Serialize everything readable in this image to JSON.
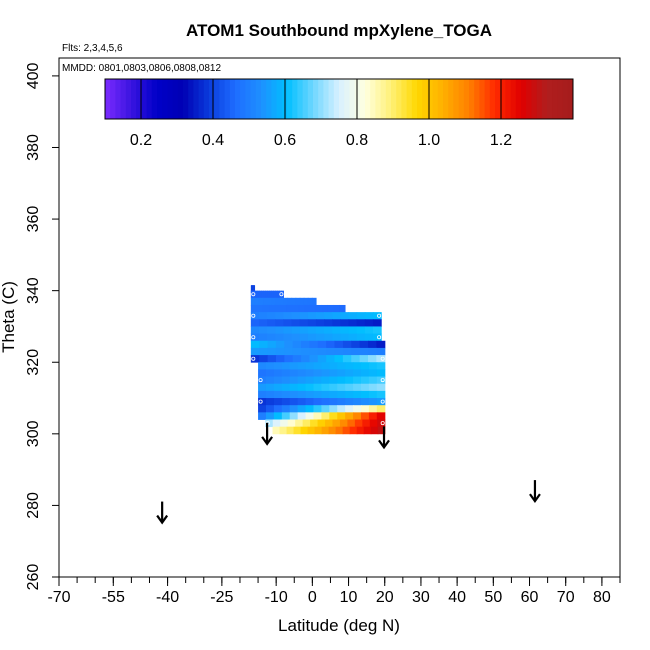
{
  "chart_data": {
    "type": "heatmap",
    "title": "ATOM1 Southbound mpXylene_TOGA",
    "subtitle_flights": "Flts: 2,3,4,5,6",
    "subtitle_dates": "MMDD: 0801,0803,0806,0808,0812",
    "xlabel": "Latitude (deg N)",
    "ylabel": "Theta (C)",
    "xlim": [
      -70,
      85
    ],
    "ylim": [
      260,
      405
    ],
    "xticks": [
      -70,
      -55,
      -40,
      -25,
      -10,
      0,
      10,
      20,
      30,
      40,
      50,
      60,
      70,
      80
    ],
    "yticks": [
      260,
      280,
      300,
      320,
      340,
      360,
      380,
      400
    ],
    "colorbar": {
      "range": [
        0.1,
        1.4
      ],
      "tick_values": [
        0.2,
        0.4,
        0.6,
        0.8,
        1.0,
        1.2
      ],
      "tick_labels": [
        "0.2",
        "0.4",
        "0.6",
        "0.8",
        "1.0",
        "1.2"
      ],
      "colors": [
        "#7b2bff",
        "#3a14e0",
        "#0000c8",
        "#0000b4",
        "#0a3bdc",
        "#1e6cff",
        "#1e90ff",
        "#00bfff",
        "#6ed6ff",
        "#d8f1ff",
        "#ffffe0",
        "#fff176",
        "#ffd700",
        "#ffb000",
        "#ff7f00",
        "#ff2a00",
        "#e00000",
        "#b01e1e",
        "#a51c1c"
      ]
    },
    "flight_arrows": [
      {
        "lat": -41.5,
        "theta": 278
      },
      {
        "lat": -12.5,
        "theta": 300
      },
      {
        "lat": 19.8,
        "theta": 299
      },
      {
        "lat": 61.5,
        "theta": 284
      }
    ],
    "heatmap_rows": [
      {
        "theta": 340.5,
        "lat_start": -17,
        "lat_end": -16,
        "c0": 0.4,
        "c1": 0.4
      },
      {
        "theta": 339,
        "lat_start": -17,
        "lat_end": -8,
        "c0": 0.45,
        "c1": 0.45
      },
      {
        "theta": 337,
        "lat_start": -17,
        "lat_end": 1,
        "c0": 0.5,
        "c1": 0.48
      },
      {
        "theta": 335,
        "lat_start": -17,
        "lat_end": 9,
        "c0": 0.48,
        "c1": 0.46
      },
      {
        "theta": 333,
        "lat_start": -17,
        "lat_end": 19,
        "c0": 0.5,
        "c1": 0.6
      },
      {
        "theta": 331,
        "lat_start": -17,
        "lat_end": 19,
        "c0": 0.45,
        "c1": 0.35
      },
      {
        "theta": 329,
        "lat_start": -17,
        "lat_end": 19,
        "c0": 0.52,
        "c1": 0.62
      },
      {
        "theta": 327,
        "lat_start": -17,
        "lat_end": 19,
        "c0": 0.5,
        "c1": 0.6
      },
      {
        "theta": 325,
        "lat_start": -17,
        "lat_end": 20,
        "c0": 0.6,
        "c1": 0.35
      },
      {
        "theta": 323,
        "lat_start": -17,
        "lat_end": 20,
        "c0": 0.55,
        "c1": 0.5
      },
      {
        "theta": 321,
        "lat_start": -17,
        "lat_end": 20,
        "c0": 0.38,
        "c1": 0.72
      },
      {
        "theta": 319,
        "lat_start": -15,
        "lat_end": 20,
        "c0": 0.52,
        "c1": 0.62
      },
      {
        "theta": 317,
        "lat_start": -15,
        "lat_end": 20,
        "c0": 0.48,
        "c1": 0.6
      },
      {
        "theta": 315,
        "lat_start": -15,
        "lat_end": 20,
        "c0": 0.5,
        "c1": 0.65
      },
      {
        "theta": 313,
        "lat_start": -15,
        "lat_end": 20,
        "c0": 0.55,
        "c1": 0.7
      },
      {
        "theta": 311,
        "lat_start": -15,
        "lat_end": 20,
        "c0": 0.5,
        "c1": 0.62
      },
      {
        "theta": 309,
        "lat_start": -15,
        "lat_end": 20,
        "c0": 0.38,
        "c1": 0.55
      },
      {
        "theta": 307,
        "lat_start": -15,
        "lat_end": 20,
        "c0": 0.4,
        "c1": 0.9
      },
      {
        "theta": 305,
        "lat_start": -15,
        "lat_end": 20,
        "c0": 0.5,
        "c1": 1.25
      },
      {
        "theta": 303,
        "lat_start": -13,
        "lat_end": 20,
        "c0": 0.72,
        "c1": 1.28
      },
      {
        "theta": 301,
        "lat_start": -11,
        "lat_end": 20,
        "c0": 0.85,
        "c1": 1.3
      }
    ]
  }
}
